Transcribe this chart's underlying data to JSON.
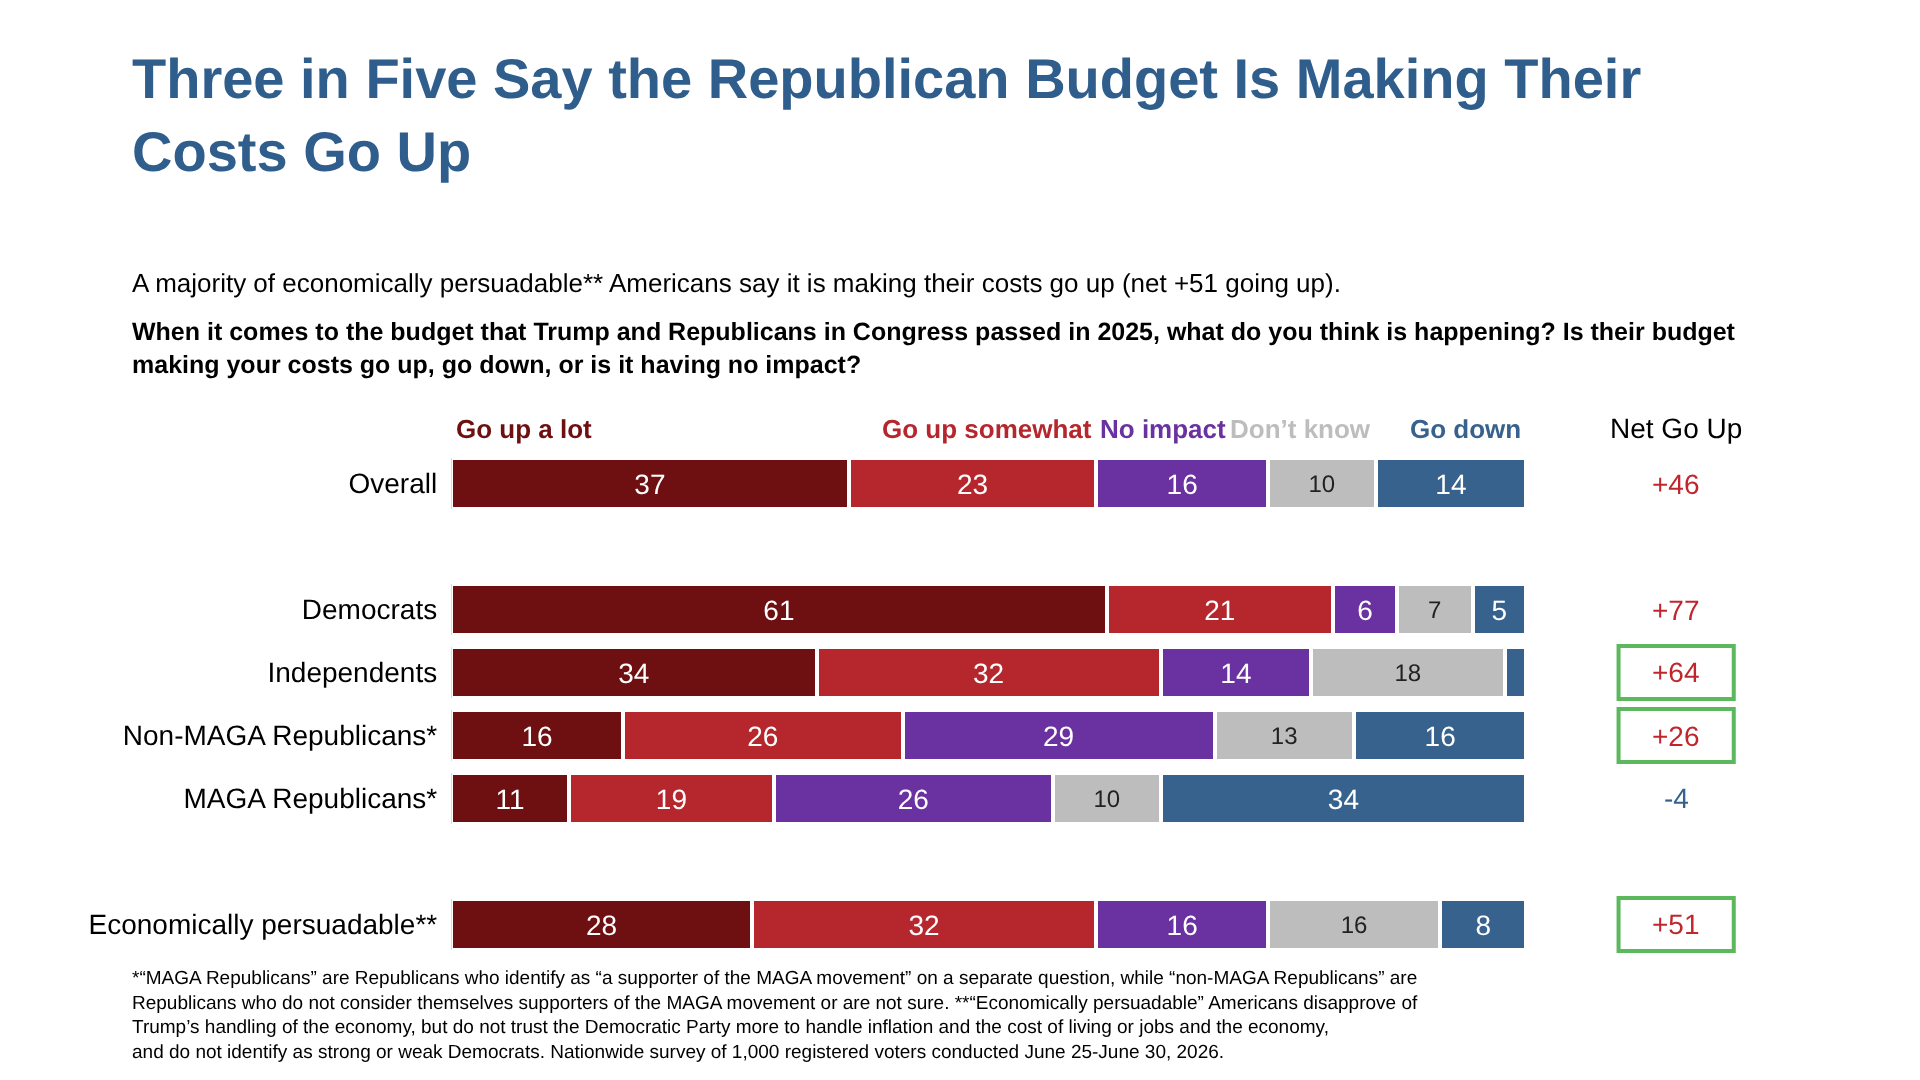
{
  "chart_data": {
    "type": "bar",
    "orientation": "horizontal",
    "stacked": true,
    "title": "Three in Five Say the Republican Budget Is Making Their Costs Go Up",
    "subtitle": "A majority of economically persuadable** Americans say it is making their costs go up (net +51 going up).",
    "ylabel": "When it comes to the budget that Trump and Republicans in Congress passed in 2025, what do you think is happening? Is their budget making your costs go up, go down, or is it having no impact?",
    "categories": [
      "Overall",
      null,
      "Democrats",
      "Independents",
      "Non-MAGA Republicans*",
      "MAGA Republicans*",
      null,
      "Economically persuadable**"
    ],
    "series": [
      {
        "name": "Go up a lot",
        "color": "#6e0f12",
        "values": [
          37,
          null,
          61,
          34,
          16,
          11,
          null,
          28
        ]
      },
      {
        "name": "Go up somewhat",
        "color": "#b5272d",
        "values": [
          23,
          null,
          21,
          32,
          26,
          19,
          null,
          32
        ]
      },
      {
        "name": "No impact",
        "color": "#6a31a0",
        "values": [
          16,
          null,
          6,
          14,
          29,
          26,
          null,
          16
        ]
      },
      {
        "name": "Don’t know",
        "color": "#bdbdbd",
        "values": [
          10,
          null,
          7,
          18,
          13,
          10,
          null,
          16
        ]
      },
      {
        "name": "Go down",
        "color": "#37628e",
        "values": [
          14,
          null,
          5,
          2,
          16,
          34,
          null,
          8
        ],
        "value_labels": [
          "14",
          null,
          "5",
          null,
          "16",
          "34",
          null,
          "8"
        ]
      }
    ],
    "data_labels": true,
    "annotations": [
      "Net Go Up",
      "+46",
      "+77",
      "+64",
      "+26",
      "-4",
      "+51",
      "*“MAGA Republicans” are Republicans who identify as “a supporter of the MAGA movement” on a separate question, while “non-MAGA Republicans” are Republicans who do not consider themselves supporters of the MAGA movement or are not sure. **“Economically persuadable” Americans disapprove of Trump’s handling of the economy, but do not trust the Democratic Party more to handle inflation and the cost of living or jobs and the economy, and do not identify as strong or weak Democrats. Nationwide survey of 1,000 registered voters conducted June 25-June 30, 2026."
    ]
  }
}
